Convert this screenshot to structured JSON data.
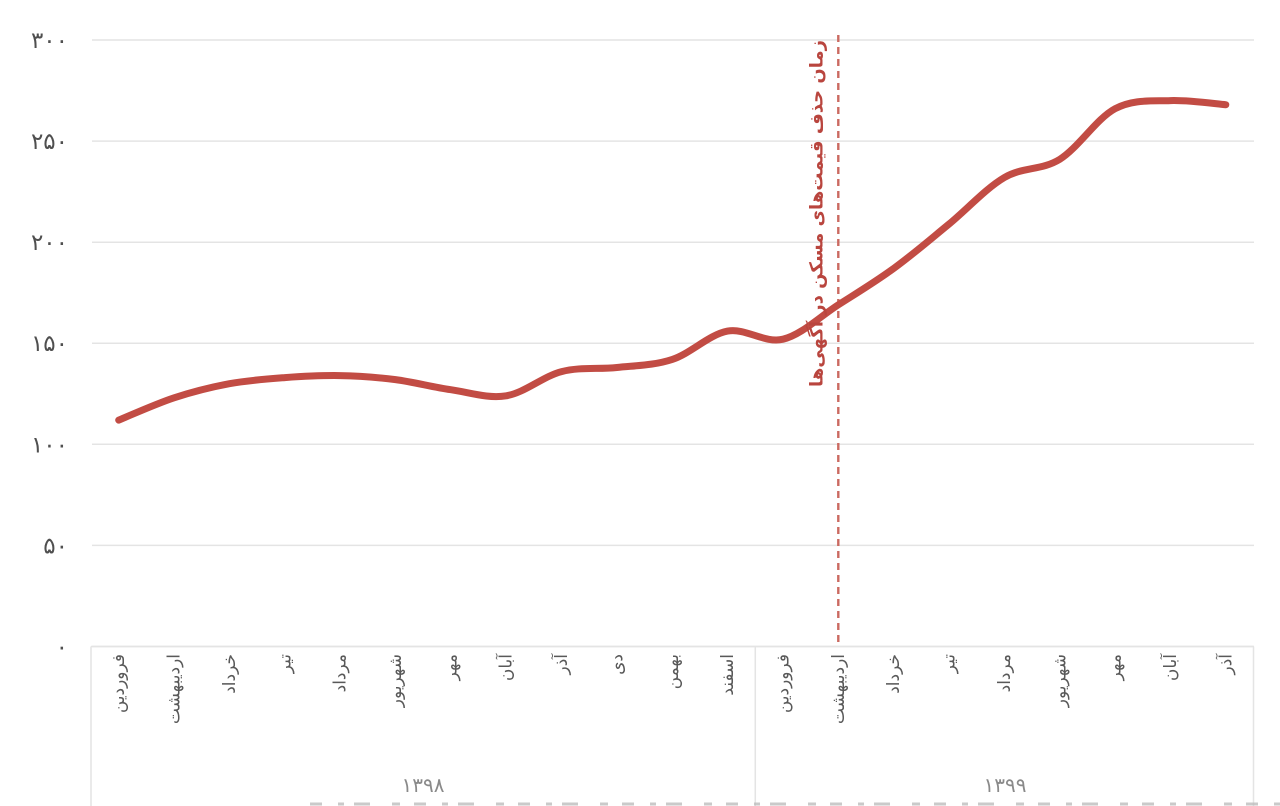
{
  "chart_data": {
    "type": "line",
    "y_axis": {
      "tick_labels": [
        "۰",
        "۵۰",
        "۱۰۰",
        "۱۵۰",
        "۲۰۰",
        "۲۵۰",
        "۳۰۰"
      ],
      "tick_values": [
        0,
        50,
        100,
        150,
        200,
        250,
        300
      ],
      "range": [
        0,
        300
      ],
      "grid": "horizontal-light-gray"
    },
    "x_axis": {
      "label_orientation": "rotated-vertical",
      "groups": [
        {
          "year_label": "۱۳۹۸",
          "months": [
            "فروردین",
            "اردیبهشت",
            "خرداد",
            "تیر",
            "مرداد",
            "شهریور",
            "مهر",
            "آبان",
            "آذر",
            "دی",
            "بهمن",
            "اسفند"
          ],
          "values": [
            112,
            123,
            130,
            133,
            134,
            132,
            127,
            124,
            136,
            138,
            142,
            156
          ]
        },
        {
          "year_label": "۱۳۹۹",
          "months": [
            "فروردین",
            "اردیبهشت",
            "خرداد",
            "تیر",
            "مرداد",
            "شهریور",
            "مهر",
            "آبان",
            "آذر"
          ],
          "values": [
            152,
            169,
            187,
            209,
            232,
            241,
            266,
            270,
            268
          ]
        }
      ]
    },
    "annotation": {
      "text": "زمان حذف قیمت‌های مسکن در آگهی‌ها",
      "marker": "vertical-dashed-line",
      "position_year": "۱۳۹۹",
      "position_month": "اردیبهشت"
    },
    "legend": "none",
    "colors": {
      "line": "#c24c44",
      "annotation_text": "#b9453e",
      "annotation_dash": "#cb6a61",
      "gridline": "#e4e4e4",
      "y_tick_label": "#4f4f4f",
      "month_label": "#595959",
      "year_label": "#8a8a8a"
    }
  }
}
